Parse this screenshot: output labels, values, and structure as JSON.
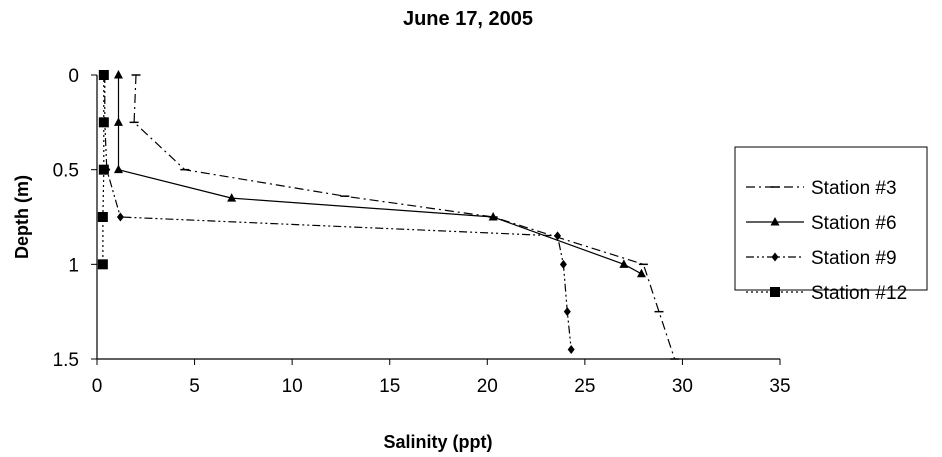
{
  "chart_data": {
    "type": "line",
    "title": "June 17, 2005",
    "xlabel": "Salinity (ppt)",
    "ylabel": "Depth (m)",
    "xlim": [
      0,
      35
    ],
    "ylim": [
      1.5,
      0
    ],
    "y_axis_reversed": true,
    "x_ticks": [
      "0",
      "5",
      "10",
      "15",
      "20",
      "25",
      "30",
      "35"
    ],
    "y_ticks": [
      "0",
      "0.5",
      "1",
      "1.5"
    ],
    "grid": false,
    "legend_position": "right",
    "series": [
      {
        "name": "Station #3",
        "marker": "dash",
        "line": "dash-dot",
        "points": [
          [
            2.0,
            0
          ],
          [
            1.9,
            0.25
          ],
          [
            4.5,
            0.5
          ],
          [
            12.7,
            0.64
          ],
          [
            20.3,
            0.75
          ],
          [
            28.0,
            1.0
          ],
          [
            28.8,
            1.25
          ],
          [
            29.6,
            1.5
          ]
        ]
      },
      {
        "name": "Station #6",
        "marker": "triangle",
        "line": "solid",
        "points": [
          [
            1.1,
            0
          ],
          [
            1.1,
            0.25
          ],
          [
            1.1,
            0.5
          ],
          [
            6.9,
            0.65
          ],
          [
            20.3,
            0.75
          ],
          [
            27.0,
            1.0
          ],
          [
            27.9,
            1.05
          ]
        ]
      },
      {
        "name": "Station #9",
        "marker": "diamond",
        "line": "dash-dot-dot",
        "points": [
          [
            0.4,
            0
          ],
          [
            0.4,
            0.25
          ],
          [
            0.5,
            0.5
          ],
          [
            1.2,
            0.75
          ],
          [
            23.6,
            0.85
          ],
          [
            23.9,
            1.0
          ],
          [
            24.1,
            1.25
          ],
          [
            24.3,
            1.45
          ]
        ]
      },
      {
        "name": "Station #12",
        "marker": "square",
        "line": "dotted",
        "points": [
          [
            0.35,
            0
          ],
          [
            0.35,
            0.25
          ],
          [
            0.35,
            0.5
          ],
          [
            0.3,
            0.75
          ],
          [
            0.3,
            1.0
          ]
        ]
      }
    ]
  }
}
